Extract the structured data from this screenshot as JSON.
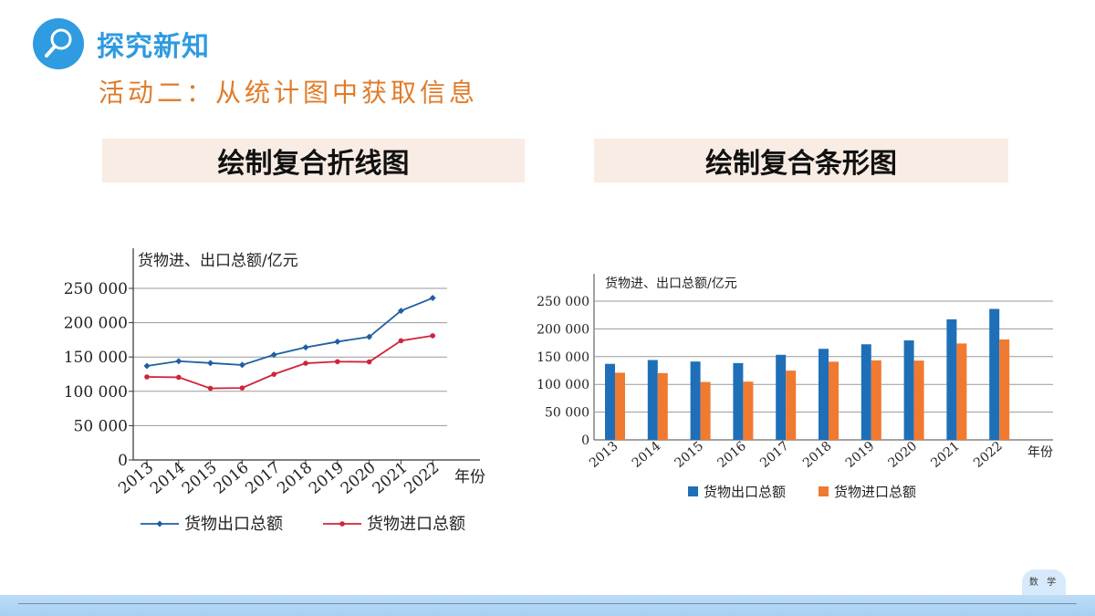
{
  "header": {
    "icon": "magnifier-icon",
    "section_title": "探究新知",
    "activity_title": "活动二：从统计图中获取信息",
    "accent_color": "#2f9be0",
    "activity_color": "#e07b2a"
  },
  "banners": {
    "left": "绘制复合折线图",
    "right": "绘制复合条形图"
  },
  "footer": {
    "tab_label": "数 学"
  },
  "chart_data": [
    {
      "type": "line",
      "ylabel": "货物进、出口总额/亿元",
      "xlabel": "年份",
      "categories": [
        "2013",
        "2014",
        "2015",
        "2016",
        "2017",
        "2018",
        "2019",
        "2020",
        "2021",
        "2022"
      ],
      "yticks": [
        0,
        50000,
        100000,
        150000,
        200000,
        250000
      ],
      "ytick_labels": [
        "0",
        "50 000",
        "100 000",
        "150 000",
        "200 000",
        "250 000"
      ],
      "ylim": [
        0,
        250000
      ],
      "grid": true,
      "legend": "bottom",
      "series": [
        {
          "name": "货物出口总额",
          "color": "#1f5fa0",
          "values": [
            137000,
            143900,
            141200,
            138400,
            153300,
            164100,
            172300,
            179300,
            217300,
            236000
          ]
        },
        {
          "name": "货物进口总额",
          "color": "#d0233c",
          "values": [
            121000,
            120400,
            104300,
            104900,
            124800,
            140900,
            143300,
            142900,
            173700,
            181000
          ]
        }
      ]
    },
    {
      "type": "bar",
      "ylabel": "货物进、出口总额/亿元",
      "xlabel": "年份",
      "categories": [
        "2013",
        "2014",
        "2015",
        "2016",
        "2017",
        "2018",
        "2019",
        "2020",
        "2021",
        "2022"
      ],
      "yticks": [
        0,
        50000,
        100000,
        150000,
        200000,
        250000
      ],
      "ytick_labels": [
        "0",
        "50 000",
        "100 000",
        "150 000",
        "200 000",
        "250 000"
      ],
      "ylim": [
        0,
        250000
      ],
      "grid": true,
      "legend": "bottom",
      "series": [
        {
          "name": "货物出口总额",
          "color": "#1f6fb8",
          "values": [
            137000,
            143900,
            141200,
            138400,
            153300,
            164100,
            172300,
            179300,
            217300,
            236000
          ]
        },
        {
          "name": "货物进口总额",
          "color": "#f07a30",
          "values": [
            121000,
            120400,
            104300,
            104900,
            124800,
            140900,
            143300,
            142900,
            173700,
            181000
          ]
        }
      ]
    }
  ]
}
